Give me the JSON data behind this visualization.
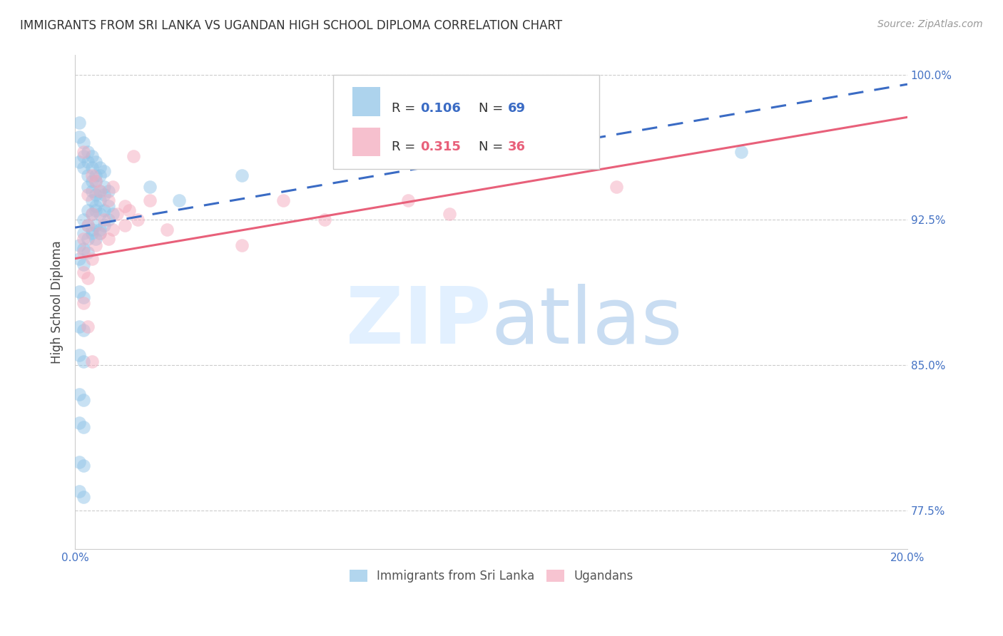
{
  "title": "IMMIGRANTS FROM SRI LANKA VS UGANDAN HIGH SCHOOL DIPLOMA CORRELATION CHART",
  "source": "Source: ZipAtlas.com",
  "ylabel": "High School Diploma",
  "ytick_positions": [
    0.775,
    0.85,
    0.925,
    1.0
  ],
  "ytick_labels": [
    "77.5%",
    "85.0%",
    "92.5%",
    "100.0%"
  ],
  "xtick_positions": [
    0.0,
    0.02,
    0.04,
    0.06,
    0.08,
    0.1,
    0.12,
    0.14,
    0.16,
    0.18,
    0.2
  ],
  "xtick_labels": [
    "0.0%",
    "",
    "",
    "",
    "",
    "",
    "",
    "",
    "",
    "",
    "20.0%"
  ],
  "legend_label_blue": "Immigrants from Sri Lanka",
  "legend_label_pink": "Ugandans",
  "watermark_zip": "ZIP",
  "watermark_atlas": "atlas",
  "blue_color": "#92C5E8",
  "pink_color": "#F4ABBE",
  "blue_line_color": "#3A6BC4",
  "pink_line_color": "#E8607A",
  "blue_scatter": [
    [
      0.001,
      0.975
    ],
    [
      0.001,
      0.968
    ],
    [
      0.002,
      0.965
    ],
    [
      0.001,
      0.955
    ],
    [
      0.002,
      0.958
    ],
    [
      0.003,
      0.96
    ],
    [
      0.002,
      0.952
    ],
    [
      0.003,
      0.955
    ],
    [
      0.004,
      0.958
    ],
    [
      0.003,
      0.948
    ],
    [
      0.004,
      0.952
    ],
    [
      0.005,
      0.955
    ],
    [
      0.004,
      0.945
    ],
    [
      0.005,
      0.948
    ],
    [
      0.006,
      0.952
    ],
    [
      0.003,
      0.942
    ],
    [
      0.004,
      0.94
    ],
    [
      0.005,
      0.945
    ],
    [
      0.006,
      0.948
    ],
    [
      0.007,
      0.95
    ],
    [
      0.005,
      0.938
    ],
    [
      0.006,
      0.94
    ],
    [
      0.007,
      0.942
    ],
    [
      0.004,
      0.935
    ],
    [
      0.005,
      0.932
    ],
    [
      0.006,
      0.935
    ],
    [
      0.007,
      0.938
    ],
    [
      0.008,
      0.94
    ],
    [
      0.003,
      0.93
    ],
    [
      0.004,
      0.928
    ],
    [
      0.005,
      0.93
    ],
    [
      0.006,
      0.928
    ],
    [
      0.007,
      0.93
    ],
    [
      0.008,
      0.932
    ],
    [
      0.002,
      0.925
    ],
    [
      0.003,
      0.922
    ],
    [
      0.004,
      0.92
    ],
    [
      0.005,
      0.922
    ],
    [
      0.006,
      0.92
    ],
    [
      0.007,
      0.922
    ],
    [
      0.008,
      0.925
    ],
    [
      0.009,
      0.928
    ],
    [
      0.002,
      0.918
    ],
    [
      0.003,
      0.915
    ],
    [
      0.004,
      0.918
    ],
    [
      0.005,
      0.915
    ],
    [
      0.006,
      0.918
    ],
    [
      0.001,
      0.912
    ],
    [
      0.002,
      0.91
    ],
    [
      0.003,
      0.908
    ],
    [
      0.001,
      0.905
    ],
    [
      0.002,
      0.902
    ],
    [
      0.018,
      0.942
    ],
    [
      0.025,
      0.935
    ],
    [
      0.001,
      0.888
    ],
    [
      0.002,
      0.885
    ],
    [
      0.001,
      0.87
    ],
    [
      0.002,
      0.868
    ],
    [
      0.001,
      0.855
    ],
    [
      0.002,
      0.852
    ],
    [
      0.001,
      0.835
    ],
    [
      0.002,
      0.832
    ],
    [
      0.001,
      0.82
    ],
    [
      0.002,
      0.818
    ],
    [
      0.001,
      0.8
    ],
    [
      0.002,
      0.798
    ],
    [
      0.001,
      0.785
    ],
    [
      0.002,
      0.782
    ],
    [
      0.04,
      0.948
    ],
    [
      0.16,
      0.96
    ]
  ],
  "pink_scatter": [
    [
      0.002,
      0.96
    ],
    [
      0.014,
      0.958
    ],
    [
      0.004,
      0.948
    ],
    [
      0.005,
      0.945
    ],
    [
      0.003,
      0.938
    ],
    [
      0.006,
      0.94
    ],
    [
      0.009,
      0.942
    ],
    [
      0.008,
      0.935
    ],
    [
      0.012,
      0.932
    ],
    [
      0.004,
      0.928
    ],
    [
      0.007,
      0.925
    ],
    [
      0.01,
      0.928
    ],
    [
      0.013,
      0.93
    ],
    [
      0.018,
      0.935
    ],
    [
      0.003,
      0.922
    ],
    [
      0.006,
      0.918
    ],
    [
      0.009,
      0.92
    ],
    [
      0.012,
      0.922
    ],
    [
      0.015,
      0.925
    ],
    [
      0.002,
      0.915
    ],
    [
      0.005,
      0.912
    ],
    [
      0.008,
      0.915
    ],
    [
      0.002,
      0.908
    ],
    [
      0.004,
      0.905
    ],
    [
      0.002,
      0.898
    ],
    [
      0.003,
      0.895
    ],
    [
      0.002,
      0.882
    ],
    [
      0.003,
      0.87
    ],
    [
      0.004,
      0.852
    ],
    [
      0.05,
      0.935
    ],
    [
      0.13,
      0.942
    ],
    [
      0.09,
      0.928
    ],
    [
      0.022,
      0.92
    ],
    [
      0.04,
      0.912
    ],
    [
      0.06,
      0.925
    ],
    [
      0.08,
      0.935
    ]
  ],
  "xlim": [
    0.0,
    0.2
  ],
  "ylim": [
    0.755,
    1.01
  ],
  "blue_trend_x": [
    0.0,
    0.2
  ],
  "blue_trend_y": [
    0.921,
    0.995
  ],
  "pink_trend_x": [
    0.0,
    0.2
  ],
  "pink_trend_y": [
    0.905,
    0.978
  ]
}
